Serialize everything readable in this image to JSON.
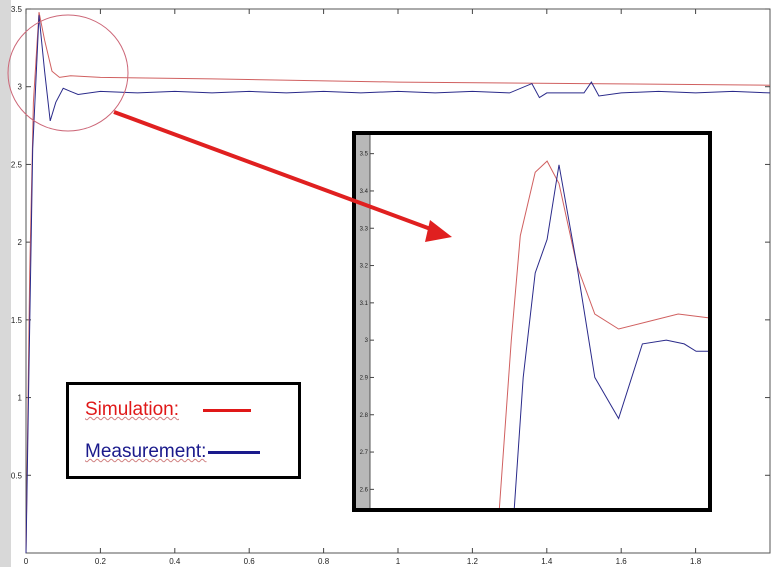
{
  "chart_data": [
    {
      "type": "line",
      "title": "",
      "xlabel": "",
      "ylabel": "",
      "xlim": [
        0,
        2.0
      ],
      "ylim": [
        0,
        3.5
      ],
      "x_ticks": [
        "0",
        "0.2",
        "0.4",
        "0.6",
        "0.8",
        "1",
        "1.2",
        "1.4",
        "1.6",
        "1.8"
      ],
      "x_tick_values": [
        0,
        0.2,
        0.4,
        0.6,
        0.8,
        1.0,
        1.2,
        1.4,
        1.6,
        1.8
      ],
      "y_ticks": [
        "0.5",
        "1",
        "1.5",
        "2",
        "2.5",
        "3",
        "3.5"
      ],
      "y_tick_values": [
        0.5,
        1.0,
        1.5,
        2.0,
        2.5,
        3.0,
        3.5
      ],
      "grid": false,
      "series": [
        {
          "name": "Simulation:",
          "color": "#d06060",
          "points": [
            [
              0,
              0
            ],
            [
              0.01,
              1.8
            ],
            [
              0.02,
              2.9
            ],
            [
              0.035,
              3.48
            ],
            [
              0.05,
              3.3
            ],
            [
              0.07,
              3.1
            ],
            [
              0.09,
              3.06
            ],
            [
              0.12,
              3.07
            ],
            [
              0.2,
              3.06
            ],
            [
              0.5,
              3.05
            ],
            [
              1.0,
              3.03
            ],
            [
              1.5,
              3.02
            ],
            [
              2.0,
              3.01
            ]
          ]
        },
        {
          "name": "Measurement:",
          "color": "#2a2a8a",
          "points": [
            [
              0,
              0
            ],
            [
              0.008,
              1.2
            ],
            [
              0.018,
              2.6
            ],
            [
              0.035,
              3.46
            ],
            [
              0.05,
              3.1
            ],
            [
              0.065,
              2.78
            ],
            [
              0.08,
              2.9
            ],
            [
              0.1,
              2.99
            ],
            [
              0.12,
              2.97
            ],
            [
              0.14,
              2.95
            ],
            [
              0.2,
              2.97
            ],
            [
              0.3,
              2.96
            ],
            [
              0.4,
              2.97
            ],
            [
              0.5,
              2.96
            ],
            [
              0.6,
              2.97
            ],
            [
              0.7,
              2.96
            ],
            [
              0.8,
              2.97
            ],
            [
              0.9,
              2.96
            ],
            [
              1.0,
              2.97
            ],
            [
              1.1,
              2.96
            ],
            [
              1.2,
              2.97
            ],
            [
              1.3,
              2.96
            ],
            [
              1.36,
              3.02
            ],
            [
              1.38,
              2.93
            ],
            [
              1.4,
              2.96
            ],
            [
              1.5,
              2.96
            ],
            [
              1.52,
              3.03
            ],
            [
              1.54,
              2.94
            ],
            [
              1.6,
              2.96
            ],
            [
              1.7,
              2.97
            ],
            [
              1.8,
              2.96
            ],
            [
              1.9,
              2.97
            ],
            [
              2.0,
              2.96
            ]
          ]
        }
      ]
    },
    {
      "type": "line",
      "title": "",
      "xlabel": "",
      "ylabel": "",
      "ylim": [
        2.55,
        3.55
      ],
      "y_ticks": [
        "2.6",
        "2.7",
        "2.8",
        "2.9",
        "3",
        "3.1",
        "3.2",
        "3.3",
        "3.4",
        "3.5"
      ],
      "y_tick_values": [
        2.6,
        2.7,
        2.8,
        2.9,
        3.0,
        3.1,
        3.2,
        3.3,
        3.4,
        3.5
      ],
      "series": [
        {
          "name": "Simulation:",
          "points": [
            [
              0.3,
              2.5
            ],
            [
              0.34,
              3.0
            ],
            [
              0.37,
              3.28
            ],
            [
              0.42,
              3.45
            ],
            [
              0.46,
              3.48
            ],
            [
              0.5,
              3.42
            ],
            [
              0.56,
              3.2
            ],
            [
              0.62,
              3.07
            ],
            [
              0.7,
              3.03
            ],
            [
              0.8,
              3.05
            ],
            [
              0.9,
              3.07
            ],
            [
              1.0,
              3.06
            ]
          ]
        },
        {
          "name": "Measurement:",
          "points": [
            [
              0.35,
              2.5
            ],
            [
              0.38,
              2.9
            ],
            [
              0.42,
              3.18
            ],
            [
              0.46,
              3.27
            ],
            [
              0.5,
              3.47
            ],
            [
              0.56,
              3.2
            ],
            [
              0.62,
              2.9
            ],
            [
              0.7,
              2.79
            ],
            [
              0.78,
              2.99
            ],
            [
              0.86,
              3.0
            ],
            [
              0.92,
              2.99
            ],
            [
              0.96,
              2.97
            ],
            [
              1.0,
              2.97
            ]
          ]
        }
      ]
    }
  ],
  "legend": {
    "entries": [
      {
        "label": "Simulation:",
        "color": "#e01818"
      },
      {
        "label": "Measurement:",
        "color": "#1a1a8c"
      }
    ]
  },
  "annotations": {
    "circle_color": "#cc6677",
    "arrow_color": "#e02020"
  }
}
